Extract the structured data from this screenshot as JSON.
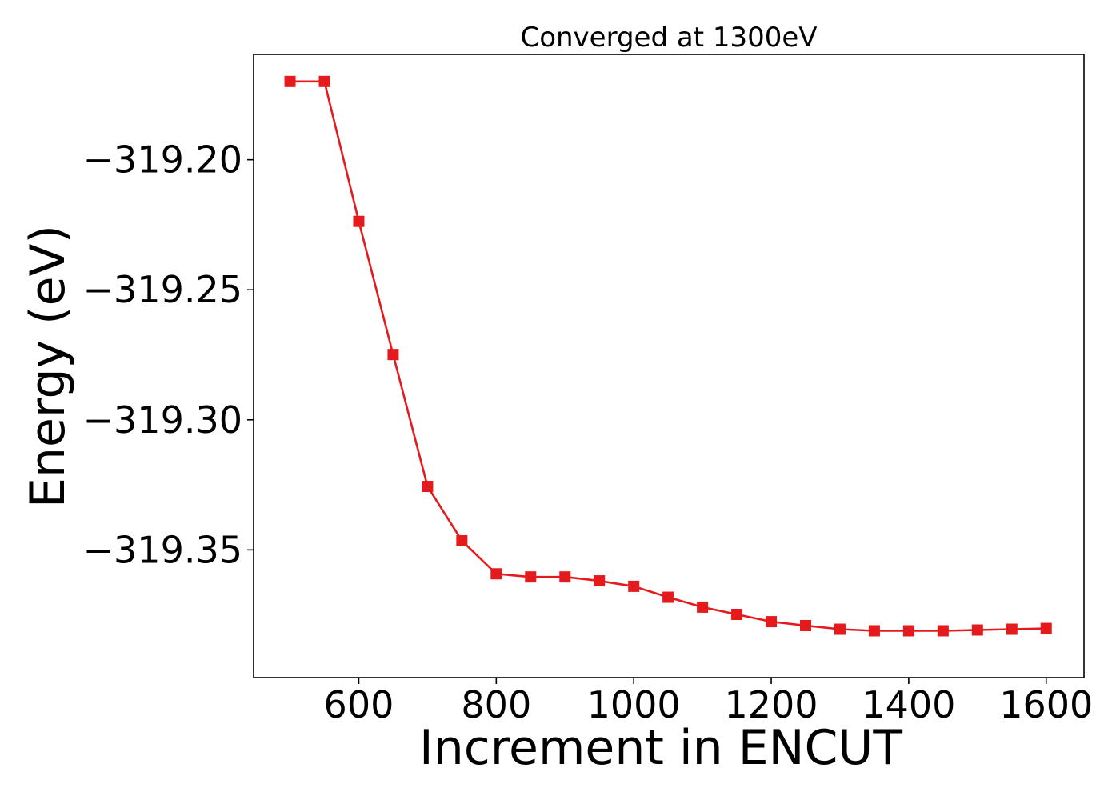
{
  "chart_data": {
    "type": "line",
    "title": "Converged at 1300eV",
    "xlabel": "Increment in ENCUT",
    "ylabel": "Energy (eV)",
    "xlim": [
      447,
      1655
    ],
    "ylim": [
      -319.3991,
      -319.1595
    ],
    "xticks": [
      600,
      800,
      1000,
      1200,
      1400,
      1600
    ],
    "xtick_labels": [
      "600",
      "800",
      "1000",
      "1200",
      "1400",
      "1600"
    ],
    "yticks": [
      -319.2,
      -319.25,
      -319.3,
      -319.35
    ],
    "ytick_labels": [
      "−319.20",
      "−319.25",
      "−319.30",
      "−319.35"
    ],
    "grid": false,
    "series": [
      {
        "color": "#e41a1c",
        "marker": "square",
        "x": [
          500,
          550,
          600,
          650,
          700,
          750,
          800,
          850,
          900,
          950,
          1000,
          1050,
          1100,
          1150,
          1200,
          1250,
          1300,
          1350,
          1400,
          1450,
          1500,
          1550,
          1600
        ],
        "y": [
          -319.1699,
          -319.1699,
          -319.2237,
          -319.2749,
          -319.3256,
          -319.3465,
          -319.3592,
          -319.3604,
          -319.3604,
          -319.3619,
          -319.364,
          -319.3682,
          -319.372,
          -319.3748,
          -319.3776,
          -319.3791,
          -319.3805,
          -319.3811,
          -319.3811,
          -319.3811,
          -319.3808,
          -319.3805,
          -319.3802
        ]
      }
    ]
  }
}
